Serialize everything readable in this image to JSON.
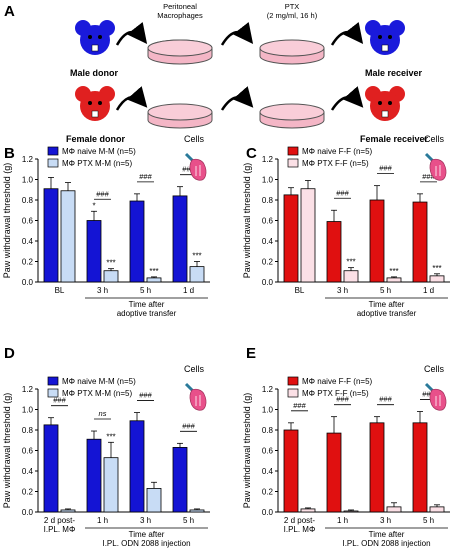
{
  "panel_a": {
    "letter": "A",
    "step1_label": "Peritoneal\nMacrophages",
    "step2_label": "PTX\n(2 mg/ml, 16 h)",
    "male_donor": "Male donor",
    "male_receiver": "Male receiver",
    "female_donor": "Female donor",
    "female_receiver": "Female receiver"
  },
  "colors": {
    "male_mouse": "#1a1adb",
    "female_mouse": "#e02020",
    "dish_fill": "#f4b6c6",
    "naive_male_bar": "#1414d4",
    "ptx_male_bar": "#c8dcf5",
    "naive_female_bar": "#e01010",
    "ptx_female_bar": "#fbe0e6",
    "cells_icon": "#e8508a"
  },
  "cells_label": "Cells",
  "chart_data": [
    {
      "panel": "B",
      "type": "bar",
      "ylabel": "Paw withdrawal threshold (g)",
      "ylim": [
        0,
        1.2
      ],
      "yticks": [
        "0.0",
        "0.2",
        "0.4",
        "0.6",
        "0.8",
        "1.0",
        "1.2"
      ],
      "categories": [
        "BL",
        "3 h",
        "5 h",
        "1 d"
      ],
      "xlabel_lines": [
        "Time after",
        "adoptive transfer"
      ],
      "xlabel_starts_at": 1,
      "series": [
        {
          "name": "MΦ naive M-M (n=5)",
          "values": [
            0.91,
            0.6,
            0.79,
            0.84
          ],
          "errors": [
            0.11,
            0.09,
            0.07,
            0.09
          ],
          "sig": [
            "",
            "*",
            "",
            ""
          ]
        },
        {
          "name": "MΦ PTX M-M (n=5)",
          "values": [
            0.89,
            0.11,
            0.04,
            0.15
          ],
          "errors": [
            0.08,
            0.02,
            0.01,
            0.05
          ],
          "sig": [
            "",
            "***",
            "***",
            "***"
          ]
        }
      ],
      "between": [
        "",
        "###",
        "###",
        "###"
      ]
    },
    {
      "panel": "C",
      "type": "bar",
      "ylabel": "Paw withdrawal threshold (g)",
      "ylim": [
        0,
        1.2
      ],
      "yticks": [
        "0.0",
        "0.2",
        "0.4",
        "0.6",
        "0.8",
        "1.0",
        "1.2"
      ],
      "categories": [
        "BL",
        "3 h",
        "5 h",
        "1 d"
      ],
      "xlabel_lines": [
        "Time after",
        "adoptive transfer"
      ],
      "xlabel_starts_at": 1,
      "series": [
        {
          "name": "MΦ naive F-F (n=5)",
          "values": [
            0.85,
            0.59,
            0.8,
            0.78
          ],
          "errors": [
            0.07,
            0.11,
            0.14,
            0.08
          ],
          "sig": [
            "",
            "",
            "",
            ""
          ]
        },
        {
          "name": "MΦ PTX F-F (n=5)",
          "values": [
            0.91,
            0.11,
            0.04,
            0.06
          ],
          "errors": [
            0.08,
            0.03,
            0.01,
            0.02
          ],
          "sig": [
            "",
            "***",
            "***",
            "***"
          ]
        }
      ],
      "between": [
        "",
        "###",
        "###",
        "###"
      ]
    },
    {
      "panel": "D",
      "type": "bar",
      "ylabel": "Paw withdrawal threshold (g)",
      "ylim": [
        0,
        1.2
      ],
      "yticks": [
        "0.0",
        "0.2",
        "0.4",
        "0.6",
        "0.8",
        "1.0",
        "1.2"
      ],
      "categories": [
        "2 d post-\nI.PL. MΦ",
        "1 h",
        "3 h",
        "5 h"
      ],
      "xlabel_lines": [
        "Time after",
        "I.PL. ODN 2088 injection"
      ],
      "xlabel_starts_at": 1,
      "series": [
        {
          "name": "MΦ naive M-M (n=5)",
          "values": [
            0.85,
            0.71,
            0.89,
            0.63
          ],
          "errors": [
            0.07,
            0.08,
            0.08,
            0.04
          ],
          "sig": [
            "",
            "",
            "",
            ""
          ]
        },
        {
          "name": "MΦ PTX M-M (n=5)",
          "values": [
            0.02,
            0.53,
            0.23,
            0.02
          ],
          "errors": [
            0.01,
            0.15,
            0.06,
            0.01
          ],
          "sig": [
            "",
            "***",
            "",
            ""
          ]
        }
      ],
      "between": [
        "###",
        "ns",
        "###",
        "###"
      ]
    },
    {
      "panel": "E",
      "type": "bar",
      "ylabel": "Paw withdrawal threshold (g)",
      "ylim": [
        0,
        1.2
      ],
      "yticks": [
        "0.0",
        "0.2",
        "0.4",
        "0.6",
        "0.8",
        "1.0",
        "1.2"
      ],
      "categories": [
        "2 d post-\nI.PL. MΦ",
        "1 h",
        "3 h",
        "5 h"
      ],
      "xlabel_lines": [
        "Time after",
        "I.PL. ODN 2088 injection"
      ],
      "xlabel_starts_at": 1,
      "series": [
        {
          "name": "MΦ naive F-F (n=5)",
          "values": [
            0.8,
            0.77,
            0.87,
            0.87
          ],
          "errors": [
            0.07,
            0.16,
            0.06,
            0.11
          ],
          "sig": [
            "",
            "",
            "",
            ""
          ]
        },
        {
          "name": "MΦ PTX F-F (n=5)",
          "values": [
            0.03,
            0.01,
            0.05,
            0.05
          ],
          "errors": [
            0.01,
            0.01,
            0.04,
            0.02
          ],
          "sig": [
            "",
            "",
            "",
            ""
          ]
        }
      ],
      "between": [
        "###",
        "###",
        "###",
        "###"
      ]
    }
  ]
}
